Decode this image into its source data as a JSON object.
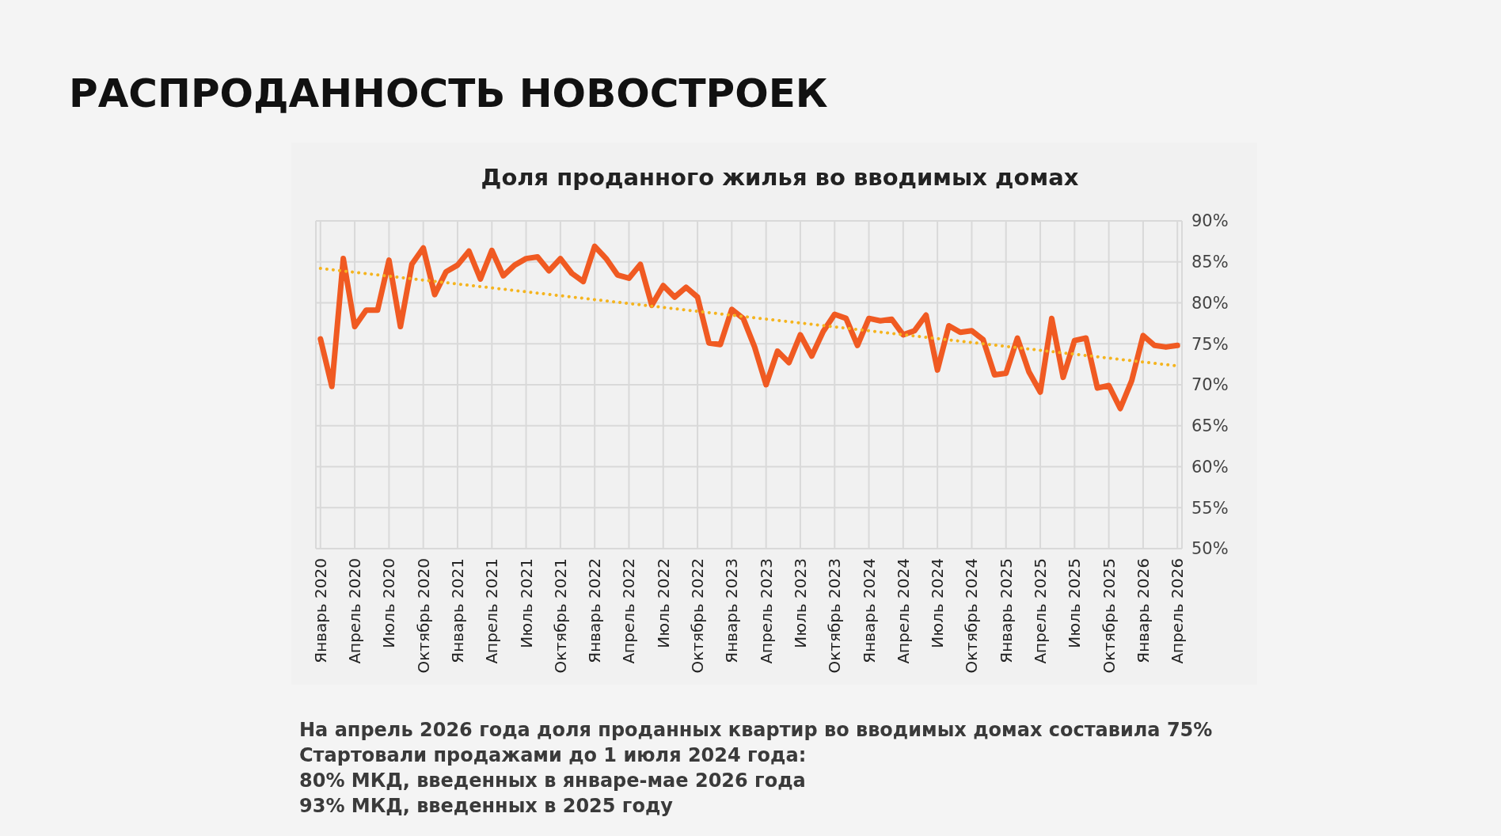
{
  "chart_data": {
    "type": "line",
    "title": "РАСПРОДАННОСТЬ НОВОСТРОЕК",
    "subtitle": "Доля проданного жилья во вводимых домах",
    "categories": [
      "Январь 2020",
      null,
      null,
      "Апрель 2020",
      null,
      null,
      "Июль 2020",
      null,
      null,
      "Октябрь 2020",
      null,
      null,
      "Январь 2021",
      null,
      null,
      "Апрель 2021",
      null,
      null,
      "Июль 2021",
      null,
      null,
      "Октябрь 2021",
      null,
      null,
      "Январь 2022",
      null,
      null,
      "Апрель 2022",
      null,
      null,
      "Июль 2022",
      null,
      null,
      "Октябрь 2022",
      null,
      null,
      "Январь 2023",
      null,
      null,
      "Апрель 2023",
      null,
      null,
      "Июль 2023",
      null,
      null,
      "Октябрь 2023",
      null,
      null,
      "Январь 2024",
      null,
      null,
      "Апрель 2024",
      null,
      null,
      "Июль 2024",
      null,
      null,
      "Октябрь 2024",
      null,
      null,
      "Январь 2025",
      null,
      null,
      "Апрель 2025",
      null,
      null,
      "Июль 2025",
      null,
      null,
      "Октябрь 2025",
      null,
      null,
      "Январь 2026",
      null,
      null,
      "Апрель 2026"
    ],
    "series": [
      {
        "color": "#f05a22",
        "line_style": "solid",
        "values": [
          75.6,
          69.8,
          85.4,
          77.1,
          79.1,
          79.1,
          85.2,
          77.1,
          84.7,
          86.7,
          81.0,
          83.8,
          84.6,
          86.3,
          82.9,
          86.4,
          83.3,
          84.6,
          85.4,
          85.6,
          83.9,
          85.4,
          83.6,
          82.6,
          86.9,
          85.4,
          83.4,
          83.0,
          84.7,
          79.7,
          82.1,
          80.7,
          81.9,
          80.7,
          75.1,
          74.9,
          79.2,
          78.1,
          74.6,
          70.0,
          74.1,
          72.7,
          76.1,
          73.5,
          76.5,
          78.6,
          78.1,
          74.8,
          78.1,
          77.8,
          78.0,
          76.1,
          76.6,
          78.5,
          71.8,
          77.2,
          76.4,
          76.6,
          75.5,
          71.2,
          71.4,
          75.7,
          71.6,
          69.1,
          78.1,
          70.9,
          75.4,
          75.7,
          69.6,
          69.9,
          67.1,
          70.5,
          76.0,
          74.8,
          74.6,
          74.8
        ]
      },
      {
        "color": "#f5b41e",
        "line_style": "dotted",
        "x": [
          "Январь 2020",
          "Апрель 2026"
        ],
        "values": [
          84.2,
          72.3
        ]
      }
    ],
    "ylim": [
      50,
      90
    ],
    "yticks": [
      {
        "value": 50,
        "label": "50%"
      },
      {
        "value": 55,
        "label": "55%"
      },
      {
        "value": 60,
        "label": "60%"
      },
      {
        "value": 65,
        "label": "65%"
      },
      {
        "value": 70,
        "label": "70%"
      },
      {
        "value": 75,
        "label": "75%"
      },
      {
        "value": 80,
        "label": "80%"
      },
      {
        "value": 85,
        "label": "85%"
      },
      {
        "value": 90,
        "label": "90%"
      }
    ],
    "grid": true,
    "marker": "none",
    "annotations": [
      "На апрель 2026 года доля проданных квартир во вводимых домах составила 75%",
      "Стартовали продажами до 1 июля 2024 года:",
      "80% МКД, введенных в январе-мае 2026 года",
      "93% МКД, введенных в 2025 году"
    ]
  }
}
